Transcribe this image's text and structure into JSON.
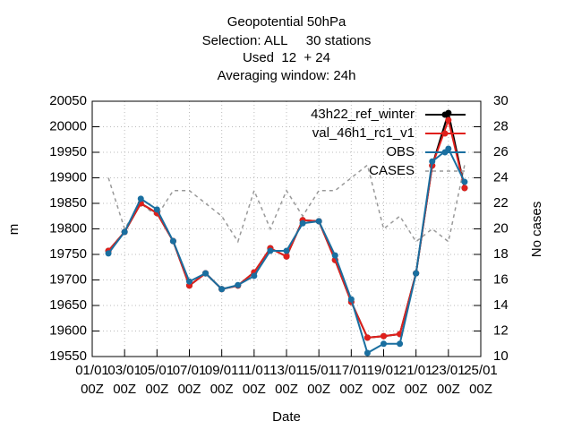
{
  "chart_data": {
    "type": "line",
    "title": "Geopotential 50hPa",
    "subtitle": [
      "Selection: ALL     30 stations",
      "Used  12  + 24",
      "Averaging window: 24h"
    ],
    "x_label": "Date",
    "y_label": "m",
    "y2_label": "No cases",
    "x": [
      1,
      2,
      3,
      4,
      5,
      6,
      7,
      8,
      9,
      10,
      11,
      12,
      13,
      14,
      15,
      16,
      17,
      18,
      19,
      20,
      21,
      22,
      23
    ],
    "xlim": [
      0,
      24
    ],
    "xticks": [
      {
        "value": 0,
        "label": "01/01\n00Z"
      },
      {
        "value": 2,
        "label": "03/01\n00Z"
      },
      {
        "value": 4,
        "label": "05/01\n00Z"
      },
      {
        "value": 6,
        "label": "07/01\n00Z"
      },
      {
        "value": 8,
        "label": "09/01\n00Z"
      },
      {
        "value": 10,
        "label": "11/01\n00Z"
      },
      {
        "value": 12,
        "label": "13/01\n00Z"
      },
      {
        "value": 14,
        "label": "15/01\n00Z"
      },
      {
        "value": 16,
        "label": "17/01\n00Z"
      },
      {
        "value": 18,
        "label": "19/01\n00Z"
      },
      {
        "value": 20,
        "label": "21/01\n00Z"
      },
      {
        "value": 22,
        "label": "23/01\n00Z"
      },
      {
        "value": 24,
        "label": "25/01\n00Z"
      }
    ],
    "ylim": [
      19550,
      20050
    ],
    "yticks": [
      19550,
      19600,
      19650,
      19700,
      19750,
      19800,
      19850,
      19900,
      19950,
      20000,
      20050
    ],
    "y2lim": [
      10,
      30
    ],
    "y2ticks": [
      10,
      12,
      14,
      16,
      18,
      20,
      22,
      24,
      26,
      28,
      30
    ],
    "grid": true,
    "legend": "top-right",
    "series": [
      {
        "name": "43h22_ref_winter",
        "color": "#000000",
        "style": "solid",
        "values": [
          19757,
          19794,
          19850,
          19831,
          19776,
          19689,
          19713,
          19682,
          19689,
          19715,
          19762,
          19746,
          19817,
          19815,
          19739,
          19657,
          19587,
          19590,
          19594,
          19713,
          19924,
          20027,
          19880
        ]
      },
      {
        "name": "val_46h1_rc1_v1",
        "color": "#e0201c",
        "style": "solid",
        "values": [
          19757,
          19794,
          19850,
          19831,
          19776,
          19689,
          19713,
          19682,
          19689,
          19715,
          19762,
          19746,
          19817,
          19815,
          19739,
          19657,
          19587,
          19590,
          19594,
          19713,
          19924,
          20013,
          19880
        ]
      },
      {
        "name": "OBS",
        "color": "#1a6fa0",
        "style": "solid",
        "values": [
          19752,
          19794,
          19859,
          19838,
          19776,
          19697,
          19713,
          19682,
          19690,
          19708,
          19757,
          19757,
          19811,
          19815,
          19748,
          19662,
          19557,
          19575,
          19575,
          19713,
          19932,
          19957,
          19892
        ]
      },
      {
        "name": "CASES",
        "color": "#999999",
        "style": "dashed",
        "axis": "y2",
        "values": [
          24,
          20,
          22,
          21,
          23,
          23,
          22,
          21,
          19,
          23,
          20,
          23,
          21,
          23,
          23,
          24,
          25,
          20,
          21,
          19,
          20,
          19,
          25
        ]
      }
    ]
  }
}
